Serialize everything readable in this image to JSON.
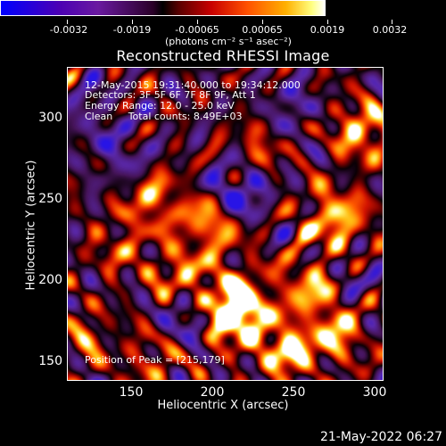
{
  "colorbar": {
    "tick_labels": [
      "-0.0032",
      "-0.0019",
      "-0.00065",
      "0.00065",
      "0.0019",
      "0.0032"
    ],
    "units": "(photons cm⁻² s⁻¹ asec⁻²)"
  },
  "title": "Reconstructed RHESSI Image",
  "info": {
    "line1": "12-May-2015 19:31:40.000 to 19:34:12.000",
    "line2": "Detectors: 3F 5F 6F 7F 8F 9F, Att 1",
    "line3": "Energy Range: 12.0 - 25.0 keV",
    "line4": "Clean     Total counts: 8.49E+03",
    "peak": "Position of Peak = [215,179]"
  },
  "axes": {
    "xlabel": "Heliocentric X (arcsec)",
    "ylabel": "Heliocentric Y (arcsec)",
    "x_ticks": [
      "150",
      "200",
      "250",
      "300"
    ],
    "y_ticks": [
      "300",
      "250",
      "200",
      "150"
    ]
  },
  "footer": {
    "date": "21-May-2022 06:27"
  }
}
